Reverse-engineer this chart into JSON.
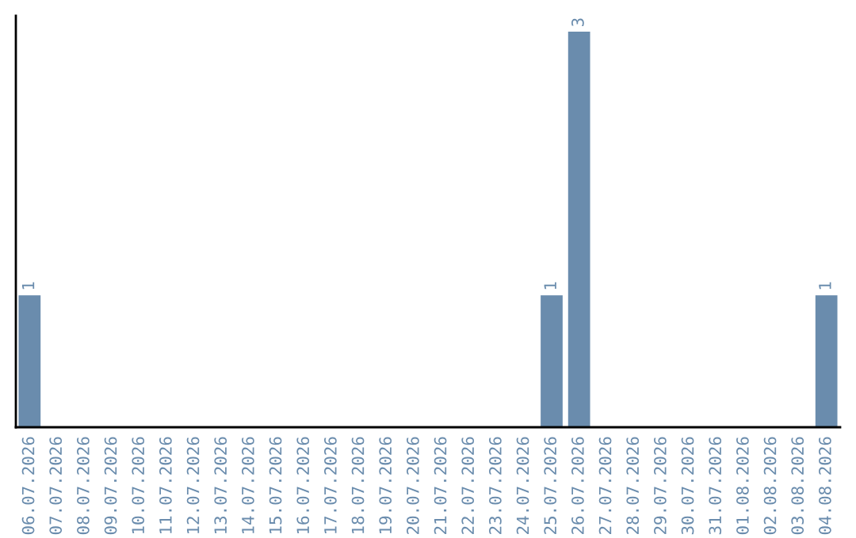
{
  "chart_data": {
    "type": "bar",
    "categories": [
      "06.07.2026",
      "07.07.2026",
      "08.07.2026",
      "09.07.2026",
      "10.07.2026",
      "11.07.2026",
      "12.07.2026",
      "13.07.2026",
      "14.07.2026",
      "15.07.2026",
      "16.07.2026",
      "17.07.2026",
      "18.07.2026",
      "19.07.2026",
      "20.07.2026",
      "21.07.2026",
      "22.07.2026",
      "23.07.2026",
      "24.07.2026",
      "25.07.2026",
      "26.07.2026",
      "27.07.2026",
      "28.07.2026",
      "29.07.2026",
      "30.07.2026",
      "31.07.2026",
      "01.08.2026",
      "02.08.2026",
      "03.08.2026",
      "04.08.2026"
    ],
    "values": [
      1,
      0,
      0,
      0,
      0,
      0,
      0,
      0,
      0,
      0,
      0,
      0,
      0,
      0,
      0,
      0,
      0,
      0,
      0,
      1,
      3,
      0,
      0,
      0,
      0,
      0,
      0,
      0,
      0,
      1
    ],
    "value_labels": [
      "1",
      null,
      null,
      null,
      null,
      null,
      null,
      null,
      null,
      null,
      null,
      null,
      null,
      null,
      null,
      null,
      null,
      null,
      null,
      "1",
      "3",
      null,
      null,
      null,
      null,
      null,
      null,
      null,
      null,
      "1"
    ],
    "color": "#6a8cad",
    "ylim": [
      0,
      3.12
    ],
    "tick_labels": "x",
    "grid": false
  }
}
